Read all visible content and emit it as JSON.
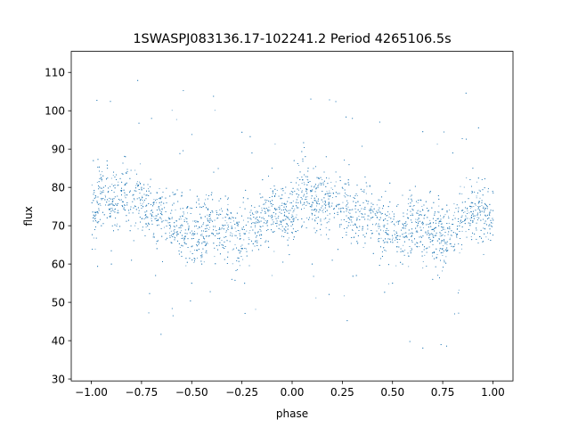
{
  "chart_data": {
    "type": "scatter",
    "title": "1SWASPJ083136.17-102241.2 Period 4265106.5s",
    "xlabel": "phase",
    "ylabel": "flux",
    "xlim": [
      -1.1,
      1.1
    ],
    "ylim": [
      29.5,
      115.5
    ],
    "xticks": [
      -1.0,
      -0.75,
      -0.5,
      -0.25,
      0.0,
      0.25,
      0.5,
      0.75,
      1.0
    ],
    "xtick_labels": [
      "−1.00",
      "−0.75",
      "−0.50",
      "−0.25",
      "0.00",
      "0.25",
      "0.50",
      "0.75",
      "1.00"
    ],
    "yticks": [
      30,
      40,
      50,
      60,
      70,
      80,
      90,
      100,
      110
    ],
    "ytick_labels": [
      "30",
      "40",
      "50",
      "60",
      "70",
      "80",
      "90",
      "100",
      "110"
    ],
    "grid": false,
    "legend": "none",
    "marker_color": "#1f77b4",
    "profile": {
      "phase": [
        0.0,
        0.05,
        0.1,
        0.15,
        0.2,
        0.25,
        0.3,
        0.35,
        0.4,
        0.45,
        0.5,
        0.55,
        0.6,
        0.65,
        0.7,
        0.75,
        0.8,
        0.85,
        0.9,
        0.95,
        1.0
      ],
      "flux": [
        72,
        80,
        76,
        78,
        77,
        76,
        74,
        73,
        72,
        70,
        68,
        69,
        71,
        69,
        68,
        67,
        70,
        72,
        74,
        73,
        72
      ],
      "spread": 7
    },
    "series": [
      {
        "x": [
          -0.99,
          -0.97,
          -0.95,
          -0.92,
          -0.9,
          -0.88,
          -0.85,
          -0.83,
          -0.8,
          -0.78,
          -0.75,
          -0.72,
          -0.7,
          -0.68,
          -0.65,
          -0.63,
          -0.6,
          -0.57,
          -0.55,
          -0.52,
          -0.5,
          -0.47,
          -0.45,
          -0.42,
          -0.4,
          -0.37,
          -0.35,
          -0.32,
          -0.3,
          -0.27,
          -0.25,
          -0.22,
          -0.2,
          -0.18,
          -0.15,
          -0.12,
          -0.1,
          -0.07,
          -0.05,
          -0.02,
          0.01,
          0.03,
          0.05,
          0.08,
          0.1,
          0.12,
          0.15,
          0.17,
          0.2,
          0.22,
          0.25,
          0.28,
          0.3,
          0.32,
          0.35,
          0.37,
          0.4,
          0.43,
          0.45,
          0.48,
          0.5,
          0.53,
          0.55,
          0.58,
          0.6,
          0.63,
          0.65,
          0.68,
          0.7,
          0.73,
          0.75,
          0.78,
          0.8,
          0.82,
          0.85,
          0.88,
          0.9,
          0.93,
          0.95,
          0.98
        ],
        "y": [
          87,
          76,
          70,
          85,
          60,
          72,
          79,
          88,
          61,
          75,
          80,
          70,
          98,
          57,
          73,
          68,
          74,
          66,
          62,
          75,
          55,
          71,
          60,
          77,
          68,
          72,
          65,
          74,
          56,
          70,
          64,
          72,
          89,
          67,
          74,
          69,
          85,
          72,
          78,
          70,
          87,
          76,
          70,
          85,
          60,
          72,
          79,
          88,
          61,
          75,
          80,
          70,
          98,
          57,
          73,
          68,
          74,
          66,
          62,
          75,
          55,
          71,
          60,
          77,
          68,
          72,
          65,
          74,
          56,
          70,
          64,
          72,
          89,
          67,
          74,
          69,
          85,
          72,
          78,
          70
        ]
      }
    ]
  }
}
